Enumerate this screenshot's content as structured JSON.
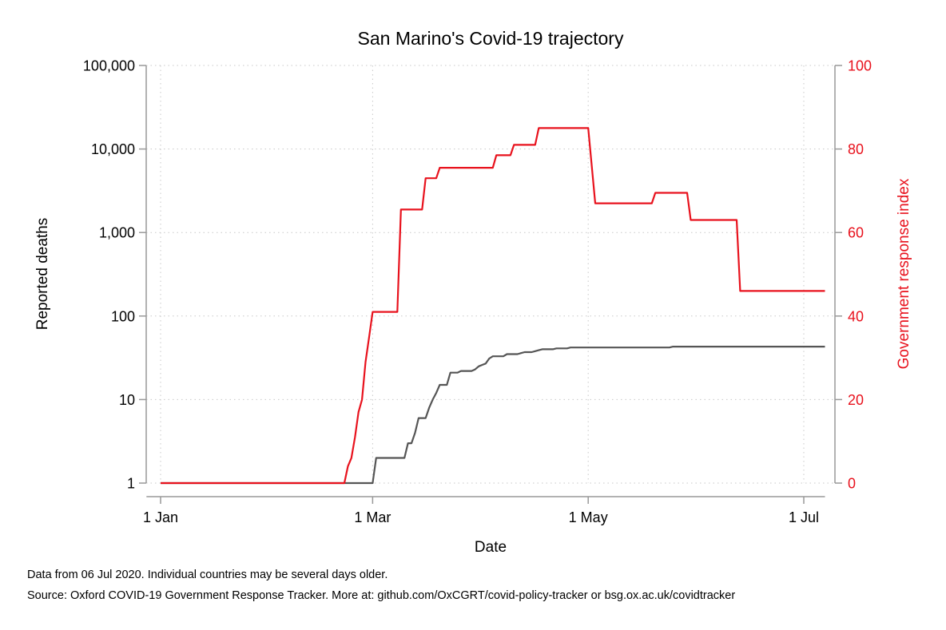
{
  "chart_data": {
    "type": "line",
    "title": "San Marino's Covid-19 trajectory",
    "xlabel": "Date",
    "ylabel": "Reported deaths",
    "y2label": "Government response index",
    "x_ticks": [
      {
        "label": "1 Jan",
        "day": 0
      },
      {
        "label": "1 Mar",
        "day": 60
      },
      {
        "label": "1 May",
        "day": 121
      },
      {
        "label": "1 Jul",
        "day": 182
      }
    ],
    "x_range_days": [
      -4,
      188
    ],
    "y_scale": "log",
    "y_ticks": [
      {
        "label": "1",
        "value": 1
      },
      {
        "label": "10",
        "value": 10
      },
      {
        "label": "100",
        "value": 100
      },
      {
        "label": "1,000",
        "value": 1000
      },
      {
        "label": "10,000",
        "value": 10000
      },
      {
        "label": "100,000",
        "value": 100000
      }
    ],
    "y_range": [
      1,
      100000
    ],
    "y2_ticks": [
      {
        "label": "0",
        "value": 0
      },
      {
        "label": "20",
        "value": 20
      },
      {
        "label": "40",
        "value": 40
      },
      {
        "label": "60",
        "value": 60
      },
      {
        "label": "80",
        "value": 80
      },
      {
        "label": "100",
        "value": 100
      }
    ],
    "y2_range": [
      0,
      100
    ],
    "grid": true,
    "colors": {
      "deaths": "#555555",
      "index": "#e8121d",
      "axis": "#999999"
    },
    "series": [
      {
        "name": "Reported deaths",
        "axis": "left",
        "color": "#555555",
        "points": [
          [
            0,
            1
          ],
          [
            60,
            1
          ],
          [
            61,
            2
          ],
          [
            69,
            2
          ],
          [
            70,
            3
          ],
          [
            71,
            3
          ],
          [
            72,
            4
          ],
          [
            73,
            6
          ],
          [
            75,
            6
          ],
          [
            76,
            8
          ],
          [
            77,
            10
          ],
          [
            78,
            12
          ],
          [
            79,
            15
          ],
          [
            81,
            15
          ],
          [
            82,
            21
          ],
          [
            84,
            21
          ],
          [
            85,
            22
          ],
          [
            88,
            22
          ],
          [
            89,
            23
          ],
          [
            90,
            25
          ],
          [
            91,
            26
          ],
          [
            92,
            27
          ],
          [
            93,
            31
          ],
          [
            94,
            33
          ],
          [
            97,
            33
          ],
          [
            98,
            35
          ],
          [
            101,
            35
          ],
          [
            102,
            36
          ],
          [
            103,
            37
          ],
          [
            105,
            37
          ],
          [
            106,
            38
          ],
          [
            107,
            39
          ],
          [
            108,
            40
          ],
          [
            111,
            40
          ],
          [
            112,
            41
          ],
          [
            115,
            41
          ],
          [
            116,
            42
          ],
          [
            144,
            42
          ],
          [
            145,
            43
          ],
          [
            188,
            43
          ]
        ]
      },
      {
        "name": "Government response index",
        "axis": "right",
        "color": "#e8121d",
        "points": [
          [
            0,
            0
          ],
          [
            52,
            0
          ],
          [
            53,
            4
          ],
          [
            54,
            6
          ],
          [
            55,
            11
          ],
          [
            56,
            17
          ],
          [
            57,
            20
          ],
          [
            58,
            29
          ],
          [
            59,
            35
          ],
          [
            60,
            41
          ],
          [
            67,
            41
          ],
          [
            68,
            65.5
          ],
          [
            74,
            65.5
          ],
          [
            75,
            73
          ],
          [
            78,
            73
          ],
          [
            79,
            75.5
          ],
          [
            94,
            75.5
          ],
          [
            95,
            78.5
          ],
          [
            99,
            78.5
          ],
          [
            100,
            81
          ],
          [
            106,
            81
          ],
          [
            107,
            85
          ],
          [
            121,
            85
          ],
          [
            123,
            67
          ],
          [
            139,
            67
          ],
          [
            140,
            69.5
          ],
          [
            149,
            69.5
          ],
          [
            150,
            63
          ],
          [
            163,
            63
          ],
          [
            164,
            46
          ],
          [
            188,
            46
          ]
        ]
      }
    ]
  },
  "notes": {
    "line1": "Data from 06 Jul 2020. Individual countries may be several days older.",
    "line2": "Source: Oxford COVID-19 Government Response Tracker. More at: github.com/OxCGRT/covid-policy-tracker or bsg.ox.ac.uk/covidtracker"
  }
}
